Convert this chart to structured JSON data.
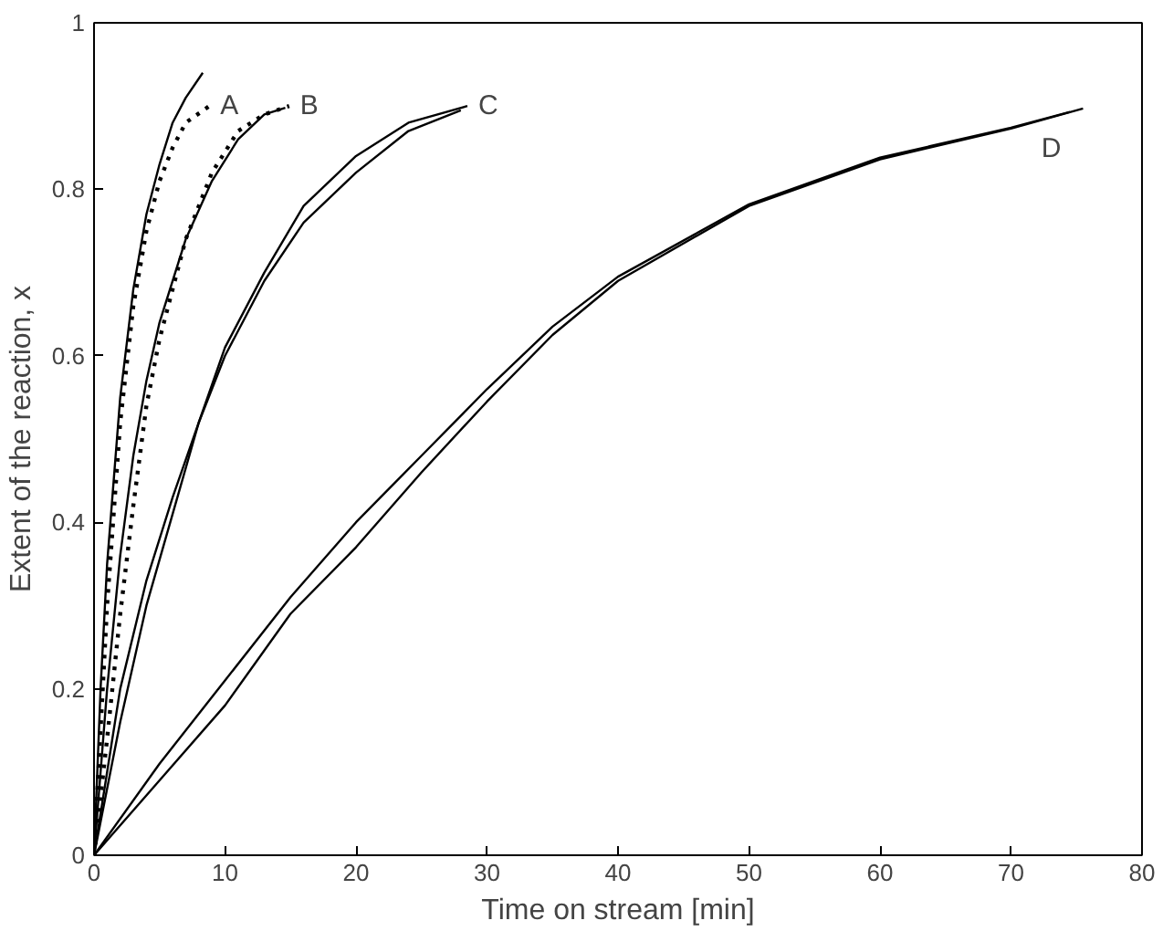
{
  "chart_data": {
    "type": "line",
    "xlabel": "Time on stream [min]",
    "ylabel": "Extent of the reaction, x",
    "xlim": [
      0,
      80
    ],
    "xticks": [
      0,
      10,
      20,
      30,
      40,
      50,
      60,
      70,
      80
    ],
    "ylim": [
      0,
      1
    ],
    "yticks": [
      0,
      0.2,
      0.4,
      0.6,
      0.8,
      1
    ],
    "grid": false,
    "marker": "none",
    "series": [
      {
        "color": "#000000",
        "line_style": "solid",
        "x": [
          0,
          0.5,
          1,
          2,
          3,
          4,
          5,
          6,
          7,
          8.3
        ],
        "values": [
          0,
          0.2,
          0.35,
          0.55,
          0.68,
          0.77,
          0.83,
          0.88,
          0.91,
          0.94
        ]
      },
      {
        "color": "#000000",
        "line_style": "dotted",
        "x": [
          0,
          0.5,
          1,
          2,
          3,
          4,
          5,
          6,
          7,
          8.8
        ],
        "values": [
          0,
          0.15,
          0.3,
          0.52,
          0.66,
          0.75,
          0.81,
          0.85,
          0.88,
          0.9
        ]
      },
      {
        "color": "#000000",
        "line_style": "solid",
        "x": [
          0,
          1,
          2,
          3,
          4,
          5,
          7,
          9,
          11,
          13,
          14.6
        ],
        "values": [
          0,
          0.2,
          0.36,
          0.48,
          0.57,
          0.64,
          0.74,
          0.81,
          0.86,
          0.89,
          0.898
        ]
      },
      {
        "color": "#000000",
        "line_style": "dotted",
        "x": [
          0,
          1,
          2,
          3,
          4,
          5,
          7,
          9,
          11,
          13,
          14.9
        ],
        "values": [
          0,
          0.14,
          0.29,
          0.42,
          0.54,
          0.62,
          0.74,
          0.82,
          0.87,
          0.89,
          0.9
        ]
      },
      {
        "color": "#000000",
        "line_style": "solid",
        "x": [
          0,
          2,
          4,
          6,
          8,
          10,
          13,
          16,
          20,
          24,
          28.5
        ],
        "values": [
          0,
          0.16,
          0.3,
          0.41,
          0.52,
          0.61,
          0.7,
          0.78,
          0.84,
          0.88,
          0.9
        ]
      },
      {
        "color": "#000000",
        "line_style": "solid",
        "x": [
          0,
          2,
          4,
          6,
          8,
          10,
          13,
          16,
          20,
          24,
          28
        ],
        "values": [
          0,
          0.2,
          0.33,
          0.43,
          0.52,
          0.6,
          0.69,
          0.76,
          0.82,
          0.87,
          0.895
        ]
      },
      {
        "color": "#000000",
        "line_style": "solid",
        "x": [
          0,
          5,
          10,
          15,
          20,
          25,
          30,
          35,
          40,
          50,
          60,
          70,
          75.5
        ],
        "values": [
          0,
          0.09,
          0.18,
          0.29,
          0.37,
          0.46,
          0.545,
          0.625,
          0.69,
          0.78,
          0.836,
          0.873,
          0.897
        ]
      },
      {
        "color": "#000000",
        "line_style": "solid",
        "x": [
          0,
          5,
          10,
          15,
          20,
          25,
          30,
          35,
          40,
          50,
          60,
          70,
          74.5
        ],
        "values": [
          0,
          0.11,
          0.21,
          0.31,
          0.4,
          0.48,
          0.56,
          0.635,
          0.695,
          0.782,
          0.838,
          0.874,
          0.893
        ]
      }
    ],
    "annotations": [
      "A",
      "B",
      "C",
      "D"
    ]
  }
}
